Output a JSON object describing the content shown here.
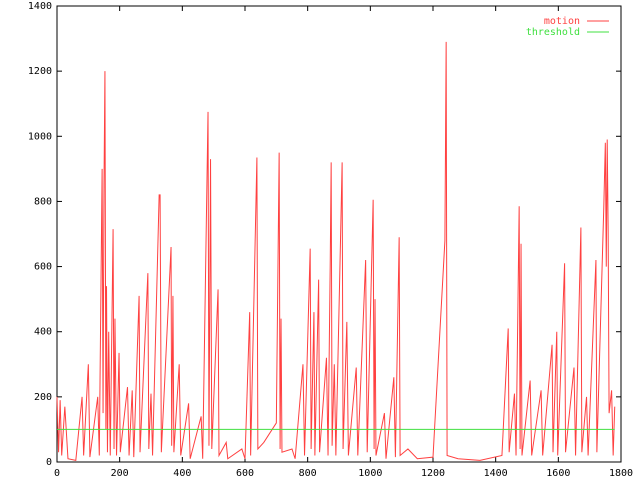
{
  "chart_data": {
    "type": "line",
    "xlim": [
      0,
      1800
    ],
    "ylim": [
      0,
      1400
    ],
    "xticks": [
      0,
      200,
      400,
      600,
      800,
      1000,
      1200,
      1400,
      1600,
      1800
    ],
    "yticks": [
      0,
      200,
      400,
      600,
      800,
      1000,
      1200,
      1400
    ],
    "legend": "upper right",
    "series": [
      {
        "name": "motion",
        "color": "#ff4040",
        "x": [
          0,
          5,
          10,
          15,
          25,
          35,
          60,
          80,
          85,
          100,
          105,
          130,
          135,
          144,
          147,
          150,
          153,
          156,
          158,
          161,
          165,
          170,
          179,
          182,
          185,
          190,
          198,
          202,
          225,
          230,
          240,
          245,
          262,
          265,
          290,
          293,
          300,
          305,
          326,
          329,
          333,
          364,
          366,
          370,
          373,
          390,
          395,
          420,
          425,
          460,
          465,
          482,
          485,
          490,
          494,
          514,
          517,
          540,
          545,
          590,
          600,
          615,
          618,
          638,
          641,
          660,
          700,
          709,
          712,
          715,
          718,
          750,
          760,
          785,
          790,
          808,
          811,
          820,
          823,
          835,
          838,
          860,
          865,
          872,
          875,
          878,
          885,
          890,
          905,
          910,
          913,
          925,
          930,
          955,
          960,
          985,
          990,
          1009,
          1012,
          1015,
          1018,
          1045,
          1050,
          1075,
          1080,
          1092,
          1095,
          1120,
          1150,
          1200,
          1238,
          1242,
          1245,
          1280,
          1350,
          1420,
          1440,
          1443,
          1460,
          1465,
          1475,
          1478,
          1481,
          1484,
          1510,
          1515,
          1545,
          1550,
          1580,
          1583,
          1595,
          1598,
          1620,
          1623,
          1650,
          1655,
          1672,
          1675,
          1690,
          1695,
          1720,
          1723,
          1745,
          1750,
          1753,
          1756,
          1759,
          1762,
          1770,
          1775,
          1780
        ],
        "values": [
          200,
          30,
          190,
          20,
          170,
          10,
          5,
          200,
          20,
          300,
          15,
          200,
          20,
          900,
          150,
          850,
          1200,
          100,
          540,
          30,
          400,
          20,
          715,
          40,
          440,
          20,
          335,
          30,
          230,
          20,
          220,
          15,
          510,
          30,
          580,
          40,
          210,
          20,
          820,
          820,
          30,
          660,
          50,
          510,
          30,
          300,
          20,
          180,
          10,
          140,
          10,
          1075,
          50,
          930,
          40,
          530,
          20,
          60,
          10,
          40,
          10,
          460,
          20,
          935,
          40,
          60,
          120,
          950,
          40,
          440,
          30,
          40,
          10,
          300,
          20,
          655,
          40,
          460,
          20,
          560,
          30,
          320,
          20,
          610,
          920,
          50,
          300,
          20,
          690,
          920,
          40,
          430,
          20,
          290,
          20,
          620,
          30,
          805,
          40,
          500,
          20,
          150,
          10,
          260,
          15,
          690,
          20,
          40,
          10,
          15,
          680,
          1290,
          20,
          10,
          5,
          20,
          410,
          30,
          210,
          20,
          785,
          40,
          670,
          20,
          250,
          20,
          220,
          20,
          360,
          30,
          400,
          20,
          610,
          30,
          290,
          20,
          720,
          30,
          200,
          20,
          620,
          30,
          780,
          980,
          600,
          990,
          710,
          150,
          220,
          20,
          170
        ]
      },
      {
        "name": "threshold",
        "color": "#40e040",
        "x": [
          0,
          1780
        ],
        "values": [
          100,
          100
        ]
      }
    ]
  }
}
